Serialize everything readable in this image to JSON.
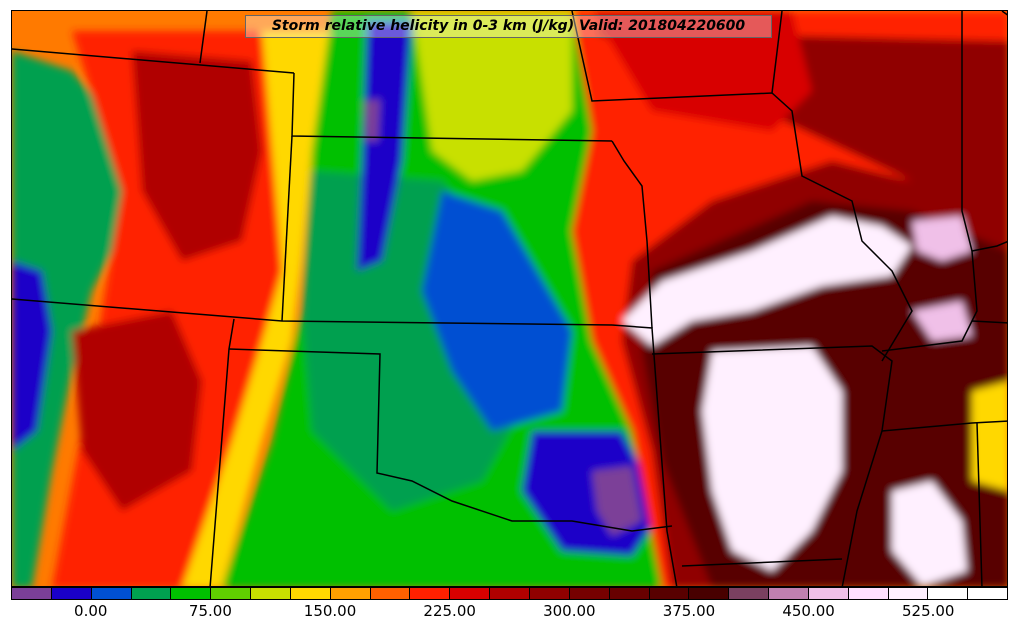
{
  "title": "Storm relative helicity in 0-3 km (J/kg) Valid: 201804220600",
  "colorbar": {
    "colors": [
      "#7b3f98",
      "#1a00c8",
      "#0050d2",
      "#00a050",
      "#00c000",
      "#60d000",
      "#c8e000",
      "#ffd800",
      "#ffa000",
      "#ff6000",
      "#ff2000",
      "#d80000",
      "#b00000",
      "#900000",
      "#760000",
      "#680000",
      "#580000",
      "#480000",
      "#7a4060",
      "#c080b0",
      "#f0c0e8",
      "#ffe0ff",
      "#fff0ff",
      "#ffffff",
      "#ffffff"
    ],
    "ticks": [
      {
        "label": "0.00",
        "pos": 2
      },
      {
        "label": "75.00",
        "pos": 5
      },
      {
        "label": "150.00",
        "pos": 8
      },
      {
        "label": "225.00",
        "pos": 11
      },
      {
        "label": "300.00",
        "pos": 14
      },
      {
        "label": "375.00",
        "pos": 17
      },
      {
        "label": "450.00",
        "pos": 20
      },
      {
        "label": "525.00",
        "pos": 23
      }
    ]
  },
  "legend_min": -25,
  "legend_max": 600,
  "legend_step": 25,
  "field_colors": {
    "background": "#ff7a00",
    "low_blue": "#1a00c8",
    "mid_green": "#00a050",
    "light_green": "#00c000",
    "yellow": "#ffd800",
    "red": "#ff2000",
    "dark_red": "#900000",
    "maroon": "#580000",
    "pink": "#f0c0e8",
    "white_pink": "#fff0ff"
  }
}
